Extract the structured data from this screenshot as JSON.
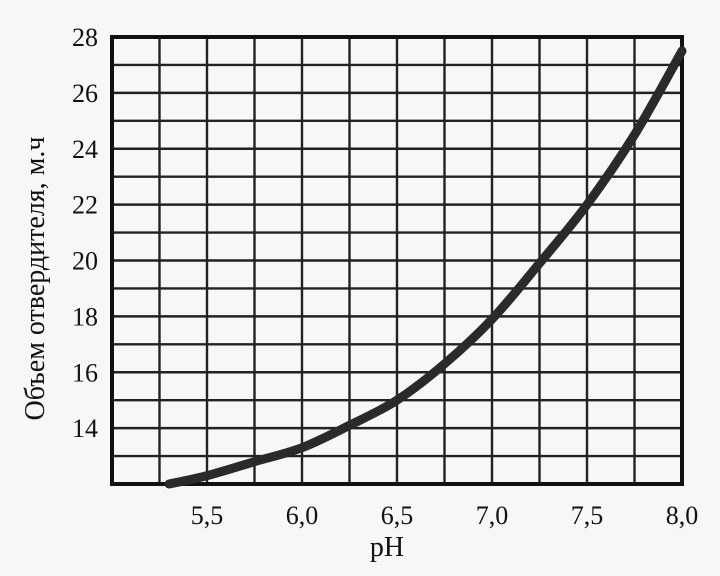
{
  "chart_data": {
    "type": "line",
    "xlabel": "pH",
    "ylabel": "Объем отвердителя, м.ч",
    "xlim": [
      5.0,
      8.0
    ],
    "ylim": [
      12,
      28
    ],
    "x_ticks": [
      "5,5",
      "6,0",
      "6,5",
      "7,0",
      "7,5",
      "8,0"
    ],
    "x_tick_values": [
      5.5,
      6.0,
      6.5,
      7.0,
      7.5,
      8.0
    ],
    "y_ticks": [
      "14",
      "16",
      "18",
      "20",
      "22",
      "24",
      "26",
      "28"
    ],
    "y_tick_values": [
      14,
      16,
      18,
      20,
      22,
      24,
      26,
      28
    ],
    "grid": true,
    "series": [
      {
        "x": [
          5.3,
          5.5,
          5.75,
          6.0,
          6.25,
          6.5,
          6.75,
          7.0,
          7.25,
          7.5,
          7.75,
          8.0
        ],
        "y": [
          12.0,
          12.3,
          12.8,
          13.3,
          14.1,
          15.0,
          16.3,
          17.9,
          19.9,
          22.0,
          24.5,
          27.5
        ]
      }
    ]
  }
}
